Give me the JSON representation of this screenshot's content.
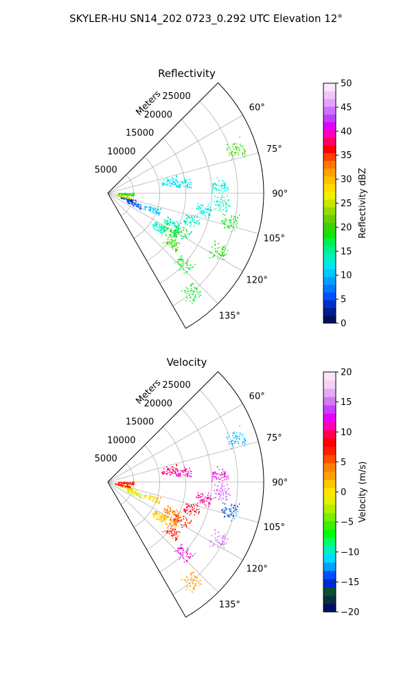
{
  "figure": {
    "suptitle": "SKYLER-HU  SN14_202  0723_0.292 UTC Elevation 12°"
  },
  "chart_data": [
    {
      "type": "scatter",
      "projection": "polar-sector",
      "title": "Reflectivity",
      "range_label": "Meters",
      "radial_ticks": [
        "5000",
        "10000",
        "15000",
        "20000",
        "25000"
      ],
      "radial_tick_values": [
        5000,
        10000,
        15000,
        20000,
        25000
      ],
      "range_max": 30000,
      "angular_ticks": [
        "60°",
        "75°",
        "90°",
        "105°",
        "120°",
        "135°"
      ],
      "angular_tick_values": [
        60,
        75,
        90,
        105,
        120,
        135
      ],
      "azimuth_range": [
        45,
        150
      ],
      "grid": true,
      "colorbar": {
        "label": "Reflectivity dBZ",
        "ticks": [
          "0",
          "5",
          "10",
          "15",
          "20",
          "25",
          "30",
          "35",
          "40",
          "45",
          "50"
        ],
        "range": [
          0,
          50
        ],
        "colors": [
          "#001060",
          "#001e8c",
          "#0032c8",
          "#0050ff",
          "#0078ff",
          "#00a0ff",
          "#00c8ff",
          "#00e6f0",
          "#00f0c0",
          "#00f08c",
          "#00f050",
          "#14e600",
          "#3cd200",
          "#64d200",
          "#96dc00",
          "#c8e600",
          "#f0f000",
          "#ffdc00",
          "#ffc000",
          "#ffa000",
          "#ff7800",
          "#ff4000",
          "#ff0000",
          "#ff0064",
          "#ff00c0",
          "#e000ff",
          "#c040ff",
          "#d070ff",
          "#e8a0ff",
          "#f0c8f8",
          "#fae6fa"
        ]
      },
      "clusters": [
        {
          "az": 71,
          "r": 26000,
          "value": 20
        },
        {
          "az": 79,
          "r": 12000,
          "value": 12
        },
        {
          "az": 83,
          "r": 14500,
          "value": 12
        },
        {
          "az": 86,
          "r": 21500,
          "value": 13
        },
        {
          "az": 95,
          "r": 22000,
          "value": 14
        },
        {
          "az": 103,
          "r": 24000,
          "value": 18
        },
        {
          "az": 100,
          "r": 18500,
          "value": 13
        },
        {
          "az": 108,
          "r": 17000,
          "value": 14
        },
        {
          "az": 115,
          "r": 13500,
          "value": 14
        },
        {
          "az": 118,
          "r": 16000,
          "value": 17
        },
        {
          "az": 122,
          "r": 14000,
          "value": 18
        },
        {
          "az": 124,
          "r": 12000,
          "value": 14
        },
        {
          "az": 110,
          "r": 9000,
          "value": 10
        },
        {
          "az": 112,
          "r": 5500,
          "value": 6
        },
        {
          "az": 106,
          "r": 4000,
          "value": 4
        },
        {
          "az": 102,
          "r": 3000,
          "value": 25
        },
        {
          "az": 92,
          "r": 3500,
          "value": 19
        },
        {
          "az": 118,
          "r": 24000,
          "value": 19
        },
        {
          "az": 133,
          "r": 20000,
          "value": 18
        },
        {
          "az": 140,
          "r": 25000,
          "value": 18
        },
        {
          "az": 128,
          "r": 15500,
          "value": 20
        }
      ]
    },
    {
      "type": "scatter",
      "projection": "polar-sector",
      "title": "Velocity",
      "range_label": "Meters",
      "radial_ticks": [
        "5000",
        "10000",
        "15000",
        "20000",
        "25000"
      ],
      "radial_tick_values": [
        5000,
        10000,
        15000,
        20000,
        25000
      ],
      "range_max": 30000,
      "angular_ticks": [
        "60°",
        "75°",
        "90°",
        "105°",
        "120°",
        "135°"
      ],
      "angular_tick_values": [
        60,
        75,
        90,
        105,
        120,
        135
      ],
      "azimuth_range": [
        45,
        150
      ],
      "grid": true,
      "colorbar": {
        "label": "Velocity (m/s)",
        "ticks": [
          "−20",
          "−15",
          "−10",
          "−5",
          "0",
          "5",
          "10",
          "15",
          "20"
        ],
        "range": [
          -20,
          20
        ],
        "colors": [
          "#001060",
          "#0a3040",
          "#0a5030",
          "#0028d0",
          "#0050ff",
          "#00a0ff",
          "#00dcff",
          "#00f0c0",
          "#00ff64",
          "#00ff00",
          "#3cf000",
          "#78f000",
          "#b4f000",
          "#e6f000",
          "#ffe600",
          "#ffc800",
          "#ffa000",
          "#ff8000",
          "#ff5000",
          "#ff1e00",
          "#ff0000",
          "#ff0050",
          "#ff00b4",
          "#e600ff",
          "#c840ff",
          "#d27af0",
          "#e6aaf0",
          "#f5d2f5",
          "#fae6fa"
        ]
      },
      "clusters": [
        {
          "az": 71,
          "r": 26000,
          "value": -12
        },
        {
          "az": 79,
          "r": 12000,
          "value": 10
        },
        {
          "az": 83,
          "r": 14500,
          "value": 11
        },
        {
          "az": 86,
          "r": 21500,
          "value": 12
        },
        {
          "az": 95,
          "r": 22000,
          "value": 14
        },
        {
          "az": 103,
          "r": 24000,
          "value": -14
        },
        {
          "az": 100,
          "r": 18500,
          "value": 11
        },
        {
          "az": 108,
          "r": 17000,
          "value": 9
        },
        {
          "az": 115,
          "r": 13500,
          "value": 4
        },
        {
          "az": 118,
          "r": 16000,
          "value": 6
        },
        {
          "az": 122,
          "r": 14000,
          "value": 3
        },
        {
          "az": 124,
          "r": 12000,
          "value": 1
        },
        {
          "az": 110,
          "r": 9000,
          "value": 1
        },
        {
          "az": 112,
          "r": 5500,
          "value": -2
        },
        {
          "az": 106,
          "r": 4000,
          "value": 0
        },
        {
          "az": 102,
          "r": 3000,
          "value": 7
        },
        {
          "az": 92,
          "r": 3500,
          "value": 7
        },
        {
          "az": 118,
          "r": 24000,
          "value": 15
        },
        {
          "az": 133,
          "r": 20000,
          "value": 12
        },
        {
          "az": 140,
          "r": 25000,
          "value": 3
        },
        {
          "az": 128,
          "r": 15500,
          "value": 7
        }
      ]
    }
  ]
}
